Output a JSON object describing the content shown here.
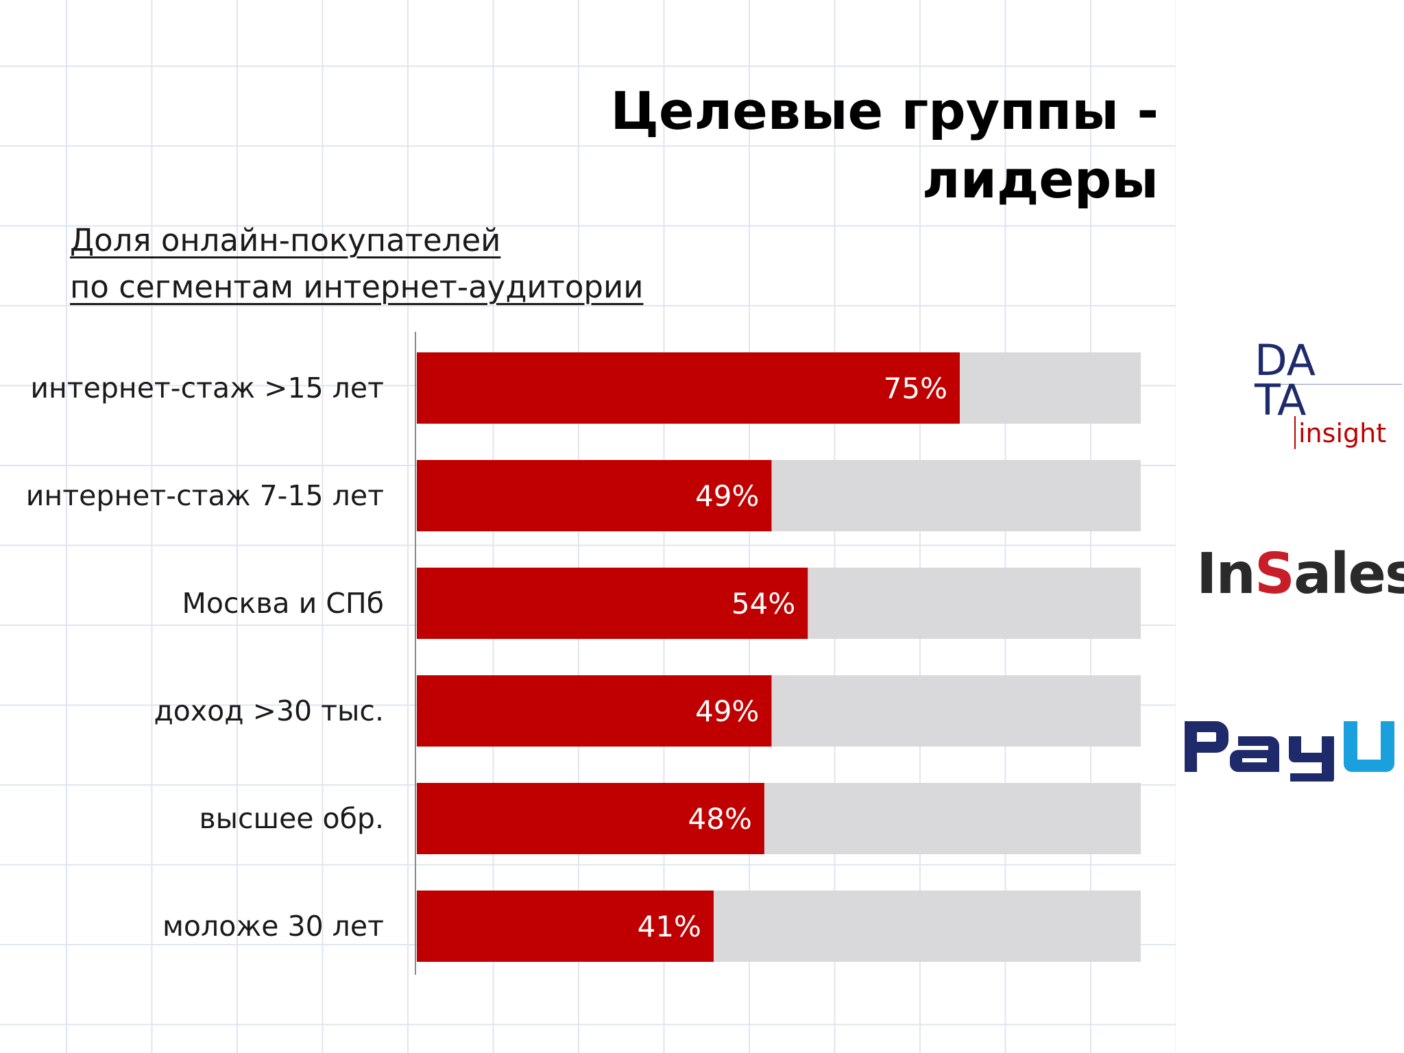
{
  "title": "Целевые группы - лидеры",
  "subtitle": {
    "line1": "Доля онлайн-покупателей",
    "line2": "по сегментам интернет-аудитории"
  },
  "chart_data": {
    "type": "bar",
    "orientation": "horizontal",
    "stacked_background": true,
    "categories": [
      "интернет-стаж >15 лет",
      "интернет-стаж 7-15 лет",
      "Москва и СПб",
      "доход >30 тыс.",
      "высшее обр.",
      "моложе 30 лет"
    ],
    "values": [
      75,
      49,
      54,
      49,
      48,
      41
    ],
    "value_labels": [
      "75%",
      "49%",
      "54%",
      "49%",
      "48%",
      "41%"
    ],
    "xlim": [
      0,
      100
    ],
    "unit": "%",
    "grid": false,
    "colors": {
      "bar": "#c00000",
      "remainder": "#d9d8db",
      "axis": "#888888"
    }
  },
  "logos": {
    "data_insight": {
      "top": "DA",
      "bottom": "TA",
      "tagline": "insight",
      "colors": {
        "letters": "#1f2a6b",
        "tagline": "#c00000"
      }
    },
    "insales": {
      "before": "In",
      "accent": "S",
      "after": "ales",
      "colors": {
        "text": "#2a2a2a",
        "accent": "#c81e2a"
      }
    },
    "payu": {
      "text": "PayU",
      "colors": {
        "main": "#1f2a6b",
        "accent": "#1aa0dc"
      }
    }
  }
}
